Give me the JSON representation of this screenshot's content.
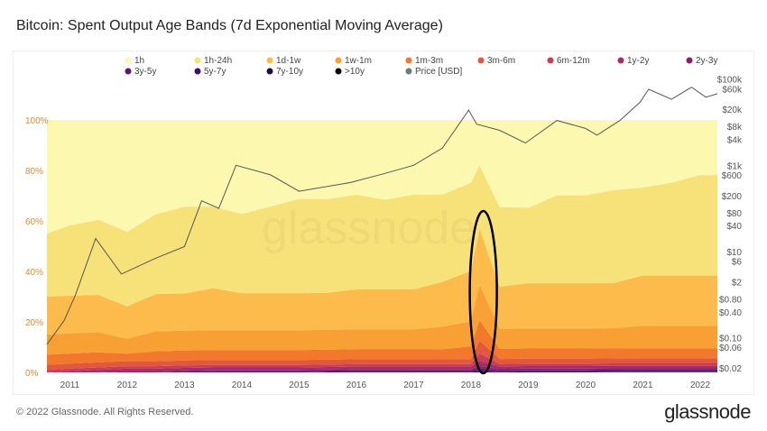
{
  "title": "Bitcoin: Spent Output Age Bands (7d Exponential Moving Average)",
  "footer": "© 2022 Glassnode. All Rights Reserved.",
  "brand": "glassnode",
  "chart_data": {
    "type": "area",
    "stacked": "percent",
    "title": "Bitcoin: Spent Output Age Bands (7d Exponential Moving Average)",
    "watermark": "glassnode",
    "legend_position": "top",
    "x": [
      2010.6,
      2011.0,
      2011.5,
      2012.0,
      2012.5,
      2013.0,
      2013.5,
      2014.0,
      2014.5,
      2015.0,
      2015.5,
      2016.0,
      2016.5,
      2017.0,
      2017.5,
      2018.0,
      2018.15,
      2018.5,
      2019.0,
      2019.5,
      2020.0,
      2020.5,
      2021.0,
      2021.5,
      2022.0,
      2022.3
    ],
    "x_ticks": [
      "2011",
      "2012",
      "2013",
      "2014",
      "2015",
      "2016",
      "2017",
      "2018",
      "2019",
      "2020",
      "2021",
      "2022"
    ],
    "y_left_ticks": [
      "0%",
      "20%",
      "40%",
      "60%",
      "80%",
      "100%"
    ],
    "y_left_range": [
      0,
      100
    ],
    "y_right_ticks": [
      "$0.02",
      "$0.06",
      "$0.10",
      "$0.40",
      "$0.80",
      "$2",
      "$6",
      "$10",
      "$40",
      "$80",
      "$200",
      "$600",
      "$1k",
      "$4k",
      "$8k",
      "$20k",
      "$60k",
      "$100k"
    ],
    "y_right_scale": "log",
    "y_right_range": [
      0.02,
      100000
    ],
    "series": [
      {
        "name": "1h",
        "color": "#fdf8b0",
        "values": [
          45,
          42,
          40,
          45,
          38,
          35,
          35,
          38,
          35,
          32,
          32,
          30,
          32,
          30,
          30,
          25,
          18,
          35,
          35,
          30,
          30,
          28,
          27,
          25,
          22,
          22
        ]
      },
      {
        "name": "1h-24h",
        "color": "#f7e27a",
        "values": [
          25,
          28,
          30,
          30,
          32,
          35,
          33,
          32,
          35,
          38,
          38,
          38,
          36,
          38,
          35,
          35,
          25,
          32,
          30,
          35,
          35,
          37,
          35,
          37,
          40,
          40
        ]
      },
      {
        "name": "1d-1w",
        "color": "#fcbb4a",
        "values": [
          15,
          15,
          15,
          13,
          15,
          15,
          17,
          15,
          15,
          15,
          15,
          16,
          16,
          16,
          18,
          20,
          22,
          17,
          18,
          18,
          18,
          18,
          20,
          20,
          20,
          20
        ]
      },
      {
        "name": "1w-1m",
        "color": "#f9a035",
        "values": [
          8,
          8,
          8,
          6,
          8,
          8,
          8,
          8,
          8,
          8,
          8,
          8,
          8,
          8,
          9,
          10,
          14,
          8,
          8,
          8,
          8,
          8,
          9,
          9,
          9,
          9
        ]
      },
      {
        "name": "1m-3m",
        "color": "#f2792c",
        "values": [
          4,
          4,
          4,
          3,
          4,
          4,
          4,
          4,
          4,
          4,
          4,
          4,
          4,
          4,
          4,
          5,
          8,
          4,
          4,
          4,
          4,
          4,
          4,
          4,
          4,
          4
        ]
      },
      {
        "name": "3m-6m",
        "color": "#e2583e",
        "values": [
          2,
          2,
          2,
          2,
          2,
          2,
          2,
          2,
          2,
          2,
          2,
          2,
          2,
          2,
          2,
          2,
          5,
          2,
          2,
          2,
          2,
          2,
          2,
          2,
          2,
          2
        ]
      },
      {
        "name": "6m-12m",
        "color": "#c93d58",
        "values": [
          1,
          1,
          1,
          1,
          1,
          1,
          1,
          1,
          1,
          1,
          1,
          1,
          1,
          1,
          1,
          1,
          3,
          1,
          1,
          1,
          1,
          1,
          1,
          1,
          1,
          1
        ]
      },
      {
        "name": "1y-2y",
        "color": "#a52c6a",
        "values": [
          0,
          0.5,
          1,
          1,
          1,
          1,
          1,
          1,
          1,
          1,
          1,
          1,
          1,
          1,
          1,
          1,
          2,
          1,
          1,
          1,
          1,
          1,
          1,
          1,
          1,
          1
        ]
      },
      {
        "name": "2y-3y",
        "color": "#85216b",
        "values": [
          0,
          0,
          0,
          0.5,
          0.5,
          0.5,
          0.5,
          0.5,
          0.5,
          0.5,
          0.5,
          0.5,
          0.5,
          0.5,
          0.5,
          0.5,
          1,
          0.5,
          0.5,
          0.5,
          0.5,
          0.5,
          0.5,
          0.5,
          0.5,
          0.5
        ]
      },
      {
        "name": "3y-5y",
        "color": "#5f1670",
        "values": [
          0,
          0,
          0,
          0,
          0,
          0.3,
          0.5,
          0.5,
          0.5,
          0.5,
          0.5,
          0.5,
          0.5,
          0.5,
          0.5,
          0.5,
          1,
          0.5,
          0.5,
          0.5,
          0.5,
          0.5,
          0.5,
          0.5,
          0.5,
          0.5
        ]
      },
      {
        "name": "5y-7y",
        "color": "#3b0f70",
        "values": [
          0,
          0,
          0,
          0,
          0,
          0,
          0,
          0,
          0,
          0,
          0.2,
          0.3,
          0.3,
          0.3,
          0.3,
          0.3,
          0.5,
          0.3,
          0.3,
          0.3,
          0.3,
          0.3,
          0.3,
          0.3,
          0.3,
          0.3
        ]
      },
      {
        "name": "7y-10y",
        "color": "#1b0c41",
        "values": [
          0,
          0,
          0,
          0,
          0,
          0,
          0,
          0,
          0,
          0,
          0,
          0,
          0,
          0,
          0,
          0,
          0,
          0.1,
          0.2,
          0.2,
          0.2,
          0.2,
          0.2,
          0.2,
          0.2,
          0.2
        ]
      },
      {
        "name": ">10y",
        "color": "#000004",
        "values": [
          0,
          0,
          0,
          0,
          0,
          0,
          0,
          0,
          0,
          0,
          0,
          0,
          0,
          0,
          0,
          0,
          0,
          0,
          0,
          0,
          0,
          0.1,
          0.1,
          0.1,
          0.1,
          0.1
        ]
      }
    ],
    "price": {
      "name": "Price [USD]",
      "color": "#777777",
      "x": [
        2010.6,
        2010.9,
        2011.1,
        2011.45,
        2011.9,
        2012.5,
        2013.0,
        2013.3,
        2013.6,
        2013.9,
        2014.5,
        2015.0,
        2015.9,
        2016.5,
        2017.0,
        2017.5,
        2017.96,
        2018.1,
        2018.5,
        2018.95,
        2019.5,
        2020.0,
        2020.2,
        2020.6,
        2020.95,
        2021.1,
        2021.5,
        2021.85,
        2022.1,
        2022.3
      ],
      "values": [
        0.07,
        0.25,
        1,
        20,
        3,
        7,
        13,
        150,
        100,
        1000,
        600,
        250,
        400,
        650,
        1000,
        2500,
        19000,
        9000,
        6500,
        3300,
        11000,
        7200,
        5000,
        11000,
        29000,
        58000,
        34000,
        65000,
        38000,
        46000
      ]
    },
    "annotation": {
      "shape": "ellipse",
      "color": "#000000",
      "x": 2018.2
    }
  }
}
